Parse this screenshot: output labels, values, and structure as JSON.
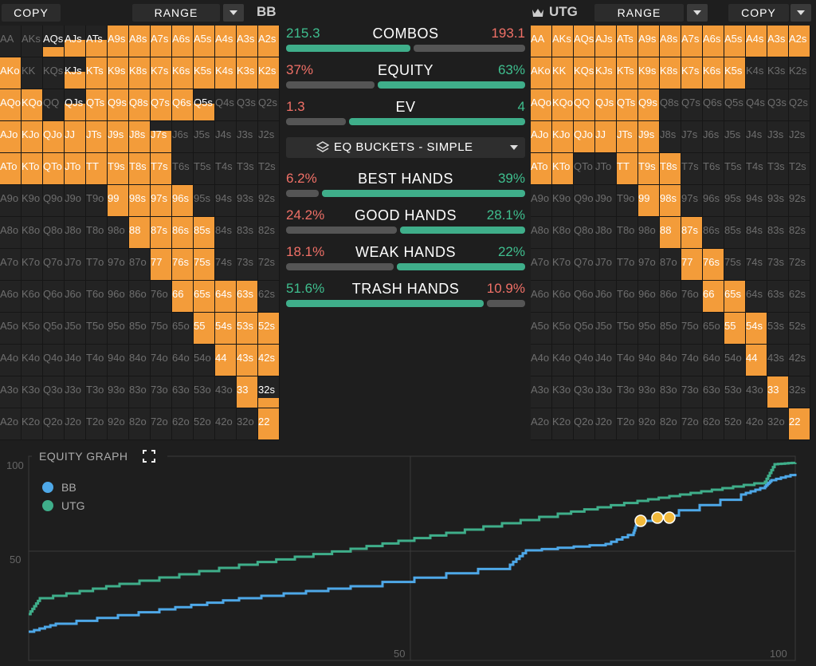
{
  "left": {
    "copy": "COPY",
    "range": "RANGE",
    "player": "BB"
  },
  "right": {
    "copy": "COPY",
    "range": "RANGE",
    "player": "UTG"
  },
  "stats": [
    {
      "label": "COMBOS",
      "left": "215.3",
      "right": "193.1",
      "leftColor": "green",
      "rightColor": "red",
      "fill": 0.52
    },
    {
      "label": "EQUITY",
      "left": "37%",
      "right": "63%",
      "leftColor": "red",
      "rightColor": "green",
      "fill": 0.37
    },
    {
      "label": "EV",
      "left": "1.3",
      "right": "4",
      "leftColor": "red",
      "rightColor": "green",
      "fill": 0.25
    }
  ],
  "buckets_label": "EQ BUCKETS - SIMPLE",
  "buckets": [
    {
      "label": "BEST HANDS",
      "left": "6.2%",
      "right": "39%",
      "leftColor": "red",
      "rightColor": "green",
      "fill": 0.137
    },
    {
      "label": "GOOD HANDS",
      "left": "24.2%",
      "right": "28.1%",
      "leftColor": "red",
      "rightColor": "green",
      "fill": 0.463
    },
    {
      "label": "WEAK HANDS",
      "left": "18.1%",
      "right": "22%",
      "leftColor": "red",
      "rightColor": "green",
      "fill": 0.451
    },
    {
      "label": "TRASH HANDS",
      "left": "51.6%",
      "right": "10.9%",
      "leftColor": "green",
      "rightColor": "red",
      "fill": 0.826
    }
  ],
  "graph": {
    "title": "EQUITY GRAPH",
    "legend": [
      {
        "name": "BB",
        "color": "#4ea8e8"
      },
      {
        "name": "UTG",
        "color": "#3fae8a"
      }
    ],
    "y_ticks": [
      "100",
      "50"
    ],
    "x_ticks": [
      "50",
      "100"
    ]
  },
  "ranks": [
    "A",
    "K",
    "Q",
    "J",
    "T",
    "9",
    "8",
    "7",
    "6",
    "5",
    "4",
    "3",
    "2"
  ],
  "bb_matrix": [
    "0000000000000",
    "0000000000000",
    "0000000000000",
    "0000000000000",
    "0000000000000",
    "0000000000000",
    "0000000000000",
    "0000000000000",
    "0000000000000",
    "0000000000000",
    "0000000000000",
    "0000000000000",
    "0000000000000"
  ],
  "bb_fill": [
    [
      0,
      0,
      0.3,
      0.55,
      0.55,
      1,
      1,
      1,
      1,
      1,
      1,
      1,
      1
    ],
    [
      1,
      0,
      0,
      0.55,
      1,
      1,
      1,
      1,
      1,
      1,
      1,
      1,
      1
    ],
    [
      1,
      1,
      0,
      0.55,
      1,
      1,
      1,
      1,
      1,
      0.55,
      0,
      0,
      0
    ],
    [
      1,
      1,
      1,
      1,
      1,
      1,
      1,
      0.7,
      0,
      0,
      0,
      0,
      0
    ],
    [
      1,
      1,
      1,
      1,
      1,
      1,
      1,
      1,
      0,
      0,
      0,
      0,
      0
    ],
    [
      0,
      0,
      0,
      0,
      0,
      1,
      1,
      1,
      1,
      0,
      0,
      0,
      0
    ],
    [
      0,
      0,
      0,
      0,
      0,
      0,
      1,
      1,
      1,
      1,
      0,
      0,
      0
    ],
    [
      0,
      0,
      0,
      0,
      0,
      0,
      0,
      1,
      1,
      1,
      0,
      0,
      0
    ],
    [
      0,
      0,
      0,
      0,
      0,
      0,
      0,
      0,
      1,
      1,
      1,
      1,
      0
    ],
    [
      0,
      0,
      0,
      0,
      0,
      0,
      0,
      0,
      0,
      1,
      1,
      1,
      1
    ],
    [
      0,
      0,
      0,
      0,
      0,
      0,
      0,
      0,
      0,
      0,
      1,
      1,
      1
    ],
    [
      0,
      0,
      0,
      0,
      0,
      0,
      0,
      0,
      0,
      0,
      0,
      1,
      0.3
    ],
    [
      0,
      0,
      0,
      0,
      0,
      0,
      0,
      0,
      0,
      0,
      0,
      0,
      1
    ]
  ],
  "utg_fill": [
    [
      1,
      1,
      1,
      1,
      1,
      1,
      1,
      1,
      1,
      1,
      1,
      1,
      1
    ],
    [
      1,
      1,
      1,
      1,
      1,
      1,
      1,
      1,
      1,
      1,
      0,
      0,
      0
    ],
    [
      1,
      1,
      1,
      1,
      1,
      1,
      0,
      0,
      0,
      0,
      0,
      0,
      0
    ],
    [
      1,
      1,
      1,
      1,
      1,
      1,
      0,
      0,
      0,
      0,
      0,
      0,
      0
    ],
    [
      1,
      1,
      0,
      0,
      1,
      1,
      1,
      0,
      0,
      0,
      0,
      0,
      0
    ],
    [
      0,
      0,
      0,
      0,
      0,
      1,
      1,
      0,
      0,
      0,
      0,
      0,
      0
    ],
    [
      0,
      0,
      0,
      0,
      0,
      0,
      1,
      1,
      0,
      0,
      0,
      0,
      0
    ],
    [
      0,
      0,
      0,
      0,
      0,
      0,
      0,
      1,
      1,
      0,
      0,
      0,
      0
    ],
    [
      0,
      0,
      0,
      0,
      0,
      0,
      0,
      0,
      1,
      1,
      0,
      0,
      0
    ],
    [
      0,
      0,
      0,
      0,
      0,
      0,
      0,
      0,
      0,
      1,
      1,
      0,
      0
    ],
    [
      0,
      0,
      0,
      0,
      0,
      0,
      0,
      0,
      0,
      0,
      1,
      0,
      0
    ],
    [
      0,
      0,
      0,
      0,
      0,
      0,
      0,
      0,
      0,
      0,
      0,
      1,
      0
    ],
    [
      0,
      0,
      0,
      0,
      0,
      0,
      0,
      0,
      0,
      0,
      0,
      0,
      1
    ]
  ]
}
